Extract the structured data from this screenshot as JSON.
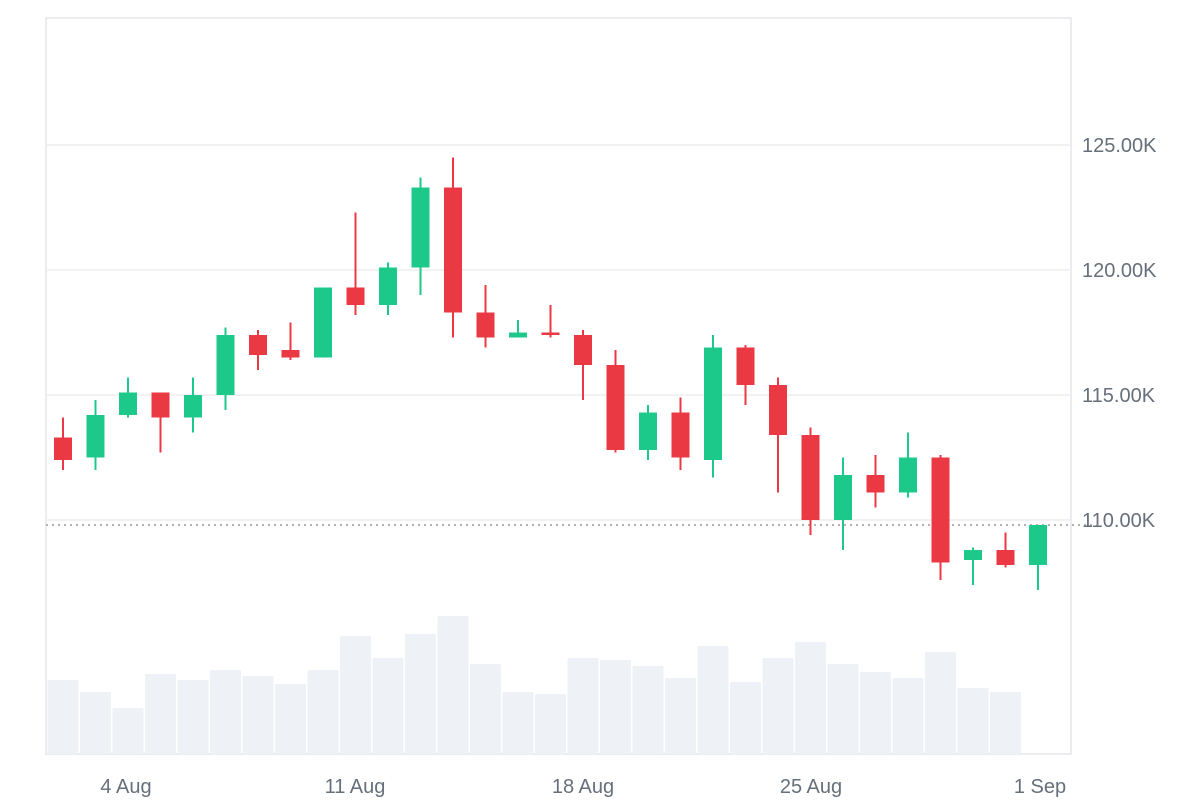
{
  "chart_data": {
    "type": "candlestick",
    "x_tick_labels": [
      "4 Aug",
      "11 Aug",
      "18 Aug",
      "25 Aug",
      "1 Sep"
    ],
    "y_tick_labels": [
      "110.00K",
      "115.00K",
      "120.00K",
      "125.00K"
    ],
    "y_ticks": [
      110000,
      115000,
      120000,
      125000
    ],
    "ylim": [
      104500,
      130000
    ],
    "grid": "horizontal",
    "current_price_line": 109800,
    "volume_has_axis": false,
    "colors": {
      "up": "#1dc98a",
      "down": "#ea3943",
      "volume": "#eef1f5",
      "grid": "#eeeeee",
      "frame": "#e4e6ea",
      "text": "#666f7a",
      "price_line": "#999999"
    },
    "candles": [
      {
        "date": "1 Aug",
        "open": 113.3,
        "high": 114.1,
        "low": 112.0,
        "close": 112.4
      },
      {
        "date": "2 Aug",
        "open": 112.5,
        "high": 114.8,
        "low": 112.0,
        "close": 114.2
      },
      {
        "date": "3 Aug",
        "open": 114.2,
        "high": 115.7,
        "low": 114.1,
        "close": 115.1
      },
      {
        "date": "4 Aug",
        "open": 115.1,
        "high": 115.1,
        "low": 112.7,
        "close": 114.1
      },
      {
        "date": "5 Aug",
        "open": 114.1,
        "high": 115.7,
        "low": 113.5,
        "close": 115.0
      },
      {
        "date": "6 Aug",
        "open": 115.0,
        "high": 117.7,
        "low": 114.4,
        "close": 117.4
      },
      {
        "date": "7 Aug",
        "open": 117.4,
        "high": 117.6,
        "low": 116.0,
        "close": 116.6
      },
      {
        "date": "8 Aug",
        "open": 116.8,
        "high": 117.9,
        "low": 116.4,
        "close": 116.5
      },
      {
        "date": "9 Aug",
        "open": 116.5,
        "high": 119.3,
        "low": 116.5,
        "close": 119.3
      },
      {
        "date": "10 Aug",
        "open": 119.3,
        "high": 122.3,
        "low": 118.2,
        "close": 118.6
      },
      {
        "date": "11 Aug",
        "open": 118.6,
        "high": 120.3,
        "low": 118.2,
        "close": 120.1
      },
      {
        "date": "12 Aug",
        "open": 120.1,
        "high": 123.7,
        "low": 119.0,
        "close": 123.3
      },
      {
        "date": "13 Aug",
        "open": 123.3,
        "high": 124.5,
        "low": 117.3,
        "close": 118.3
      },
      {
        "date": "14 Aug",
        "open": 118.3,
        "high": 119.4,
        "low": 116.9,
        "close": 117.3
      },
      {
        "date": "15 Aug",
        "open": 117.3,
        "high": 118.0,
        "low": 117.3,
        "close": 117.5
      },
      {
        "date": "16 Aug",
        "open": 117.5,
        "high": 118.6,
        "low": 117.3,
        "close": 117.4
      },
      {
        "date": "17 Aug",
        "open": 117.4,
        "high": 117.6,
        "low": 114.8,
        "close": 116.2
      },
      {
        "date": "18 Aug",
        "open": 116.2,
        "high": 116.8,
        "low": 112.7,
        "close": 112.8
      },
      {
        "date": "19 Aug",
        "open": 112.8,
        "high": 114.6,
        "low": 112.4,
        "close": 114.3
      },
      {
        "date": "20 Aug",
        "open": 114.3,
        "high": 114.9,
        "low": 112.0,
        "close": 112.5
      },
      {
        "date": "21 Aug",
        "open": 112.4,
        "high": 117.4,
        "low": 111.7,
        "close": 116.9
      },
      {
        "date": "22 Aug",
        "open": 116.9,
        "high": 117.0,
        "low": 114.6,
        "close": 115.4
      },
      {
        "date": "23 Aug",
        "open": 115.4,
        "high": 115.7,
        "low": 111.1,
        "close": 113.4
      },
      {
        "date": "24 Aug",
        "open": 113.4,
        "high": 113.7,
        "low": 109.4,
        "close": 110.0
      },
      {
        "date": "25 Aug",
        "open": 110.0,
        "high": 112.5,
        "low": 108.8,
        "close": 111.8
      },
      {
        "date": "26 Aug",
        "open": 111.8,
        "high": 112.6,
        "low": 110.5,
        "close": 111.1
      },
      {
        "date": "27 Aug",
        "open": 111.1,
        "high": 113.5,
        "low": 110.9,
        "close": 112.5
      },
      {
        "date": "28 Aug",
        "open": 112.5,
        "high": 112.6,
        "low": 107.6,
        "close": 108.3
      },
      {
        "date": "29 Aug",
        "open": 108.4,
        "high": 108.9,
        "low": 107.4,
        "close": 108.8
      },
      {
        "date": "30 Aug",
        "open": 108.8,
        "high": 109.5,
        "low": 108.1,
        "close": 108.2
      },
      {
        "date": "31 Aug",
        "open": 108.2,
        "high": 109.8,
        "low": 107.2,
        "close": 109.8
      }
    ],
    "volume": [
      74,
      62,
      46,
      80,
      74,
      84,
      78,
      70,
      84,
      118,
      96,
      120,
      138,
      90,
      62,
      60,
      96,
      94,
      88,
      76,
      108,
      72,
      96,
      112,
      90,
      82,
      76,
      102,
      66,
      62,
      0
    ],
    "volume_max": 140
  }
}
